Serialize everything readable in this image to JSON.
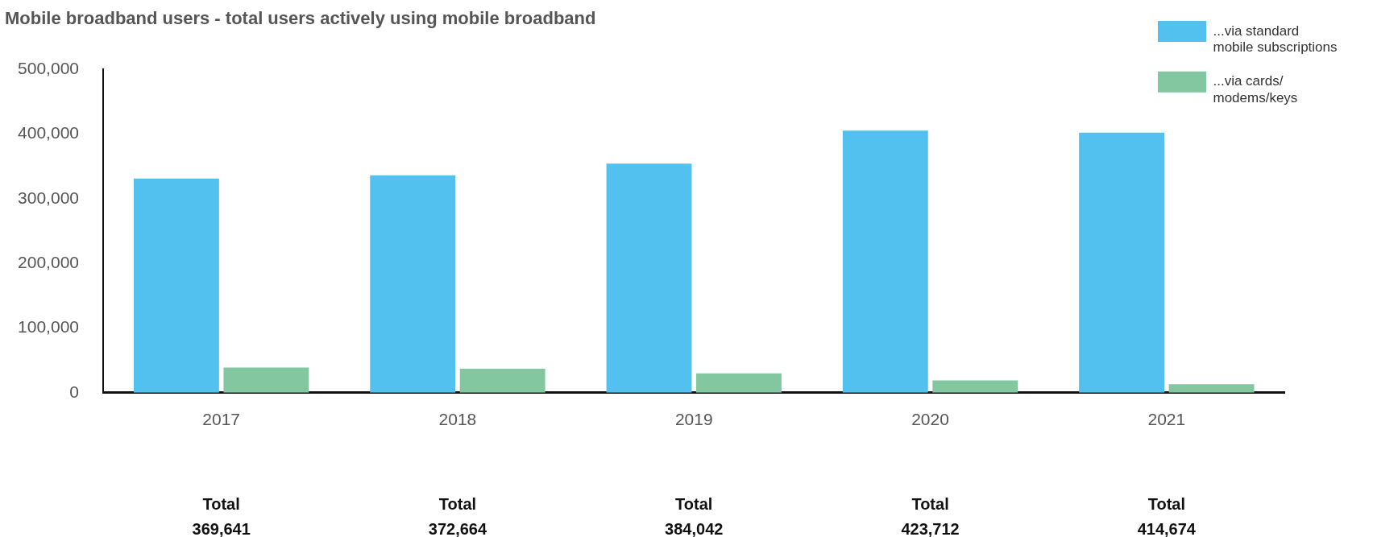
{
  "chart_data": {
    "type": "bar",
    "title": "Mobile broadband users - total users actively using mobile broadband",
    "categories": [
      "2017",
      "2018",
      "2019",
      "2020",
      "2021"
    ],
    "series": [
      {
        "name": "...via standard mobile subscriptions",
        "color": "#52c1ef",
        "values": [
          331000,
          336000,
          354000,
          405000,
          402000
        ]
      },
      {
        "name": "...via cards/ modems/keys",
        "color": "#82c7a0",
        "values": [
          39000,
          37000,
          30000,
          19000,
          13000
        ]
      }
    ],
    "ylim": [
      0,
      500000
    ],
    "yticks": [
      {
        "value": 0,
        "label": "0"
      },
      {
        "value": 100000,
        "label": "100,000"
      },
      {
        "value": 200000,
        "label": "200,000"
      },
      {
        "value": 300000,
        "label": "300,000"
      },
      {
        "value": 400000,
        "label": "400,000"
      },
      {
        "value": 500000,
        "label": "500,000"
      }
    ],
    "grid": false,
    "legend": "top right",
    "annotations": [
      "Total\n369,641",
      "Total\n372,664",
      "Total\n384,042",
      "Total\n423,712",
      "Total\n414,674"
    ]
  }
}
